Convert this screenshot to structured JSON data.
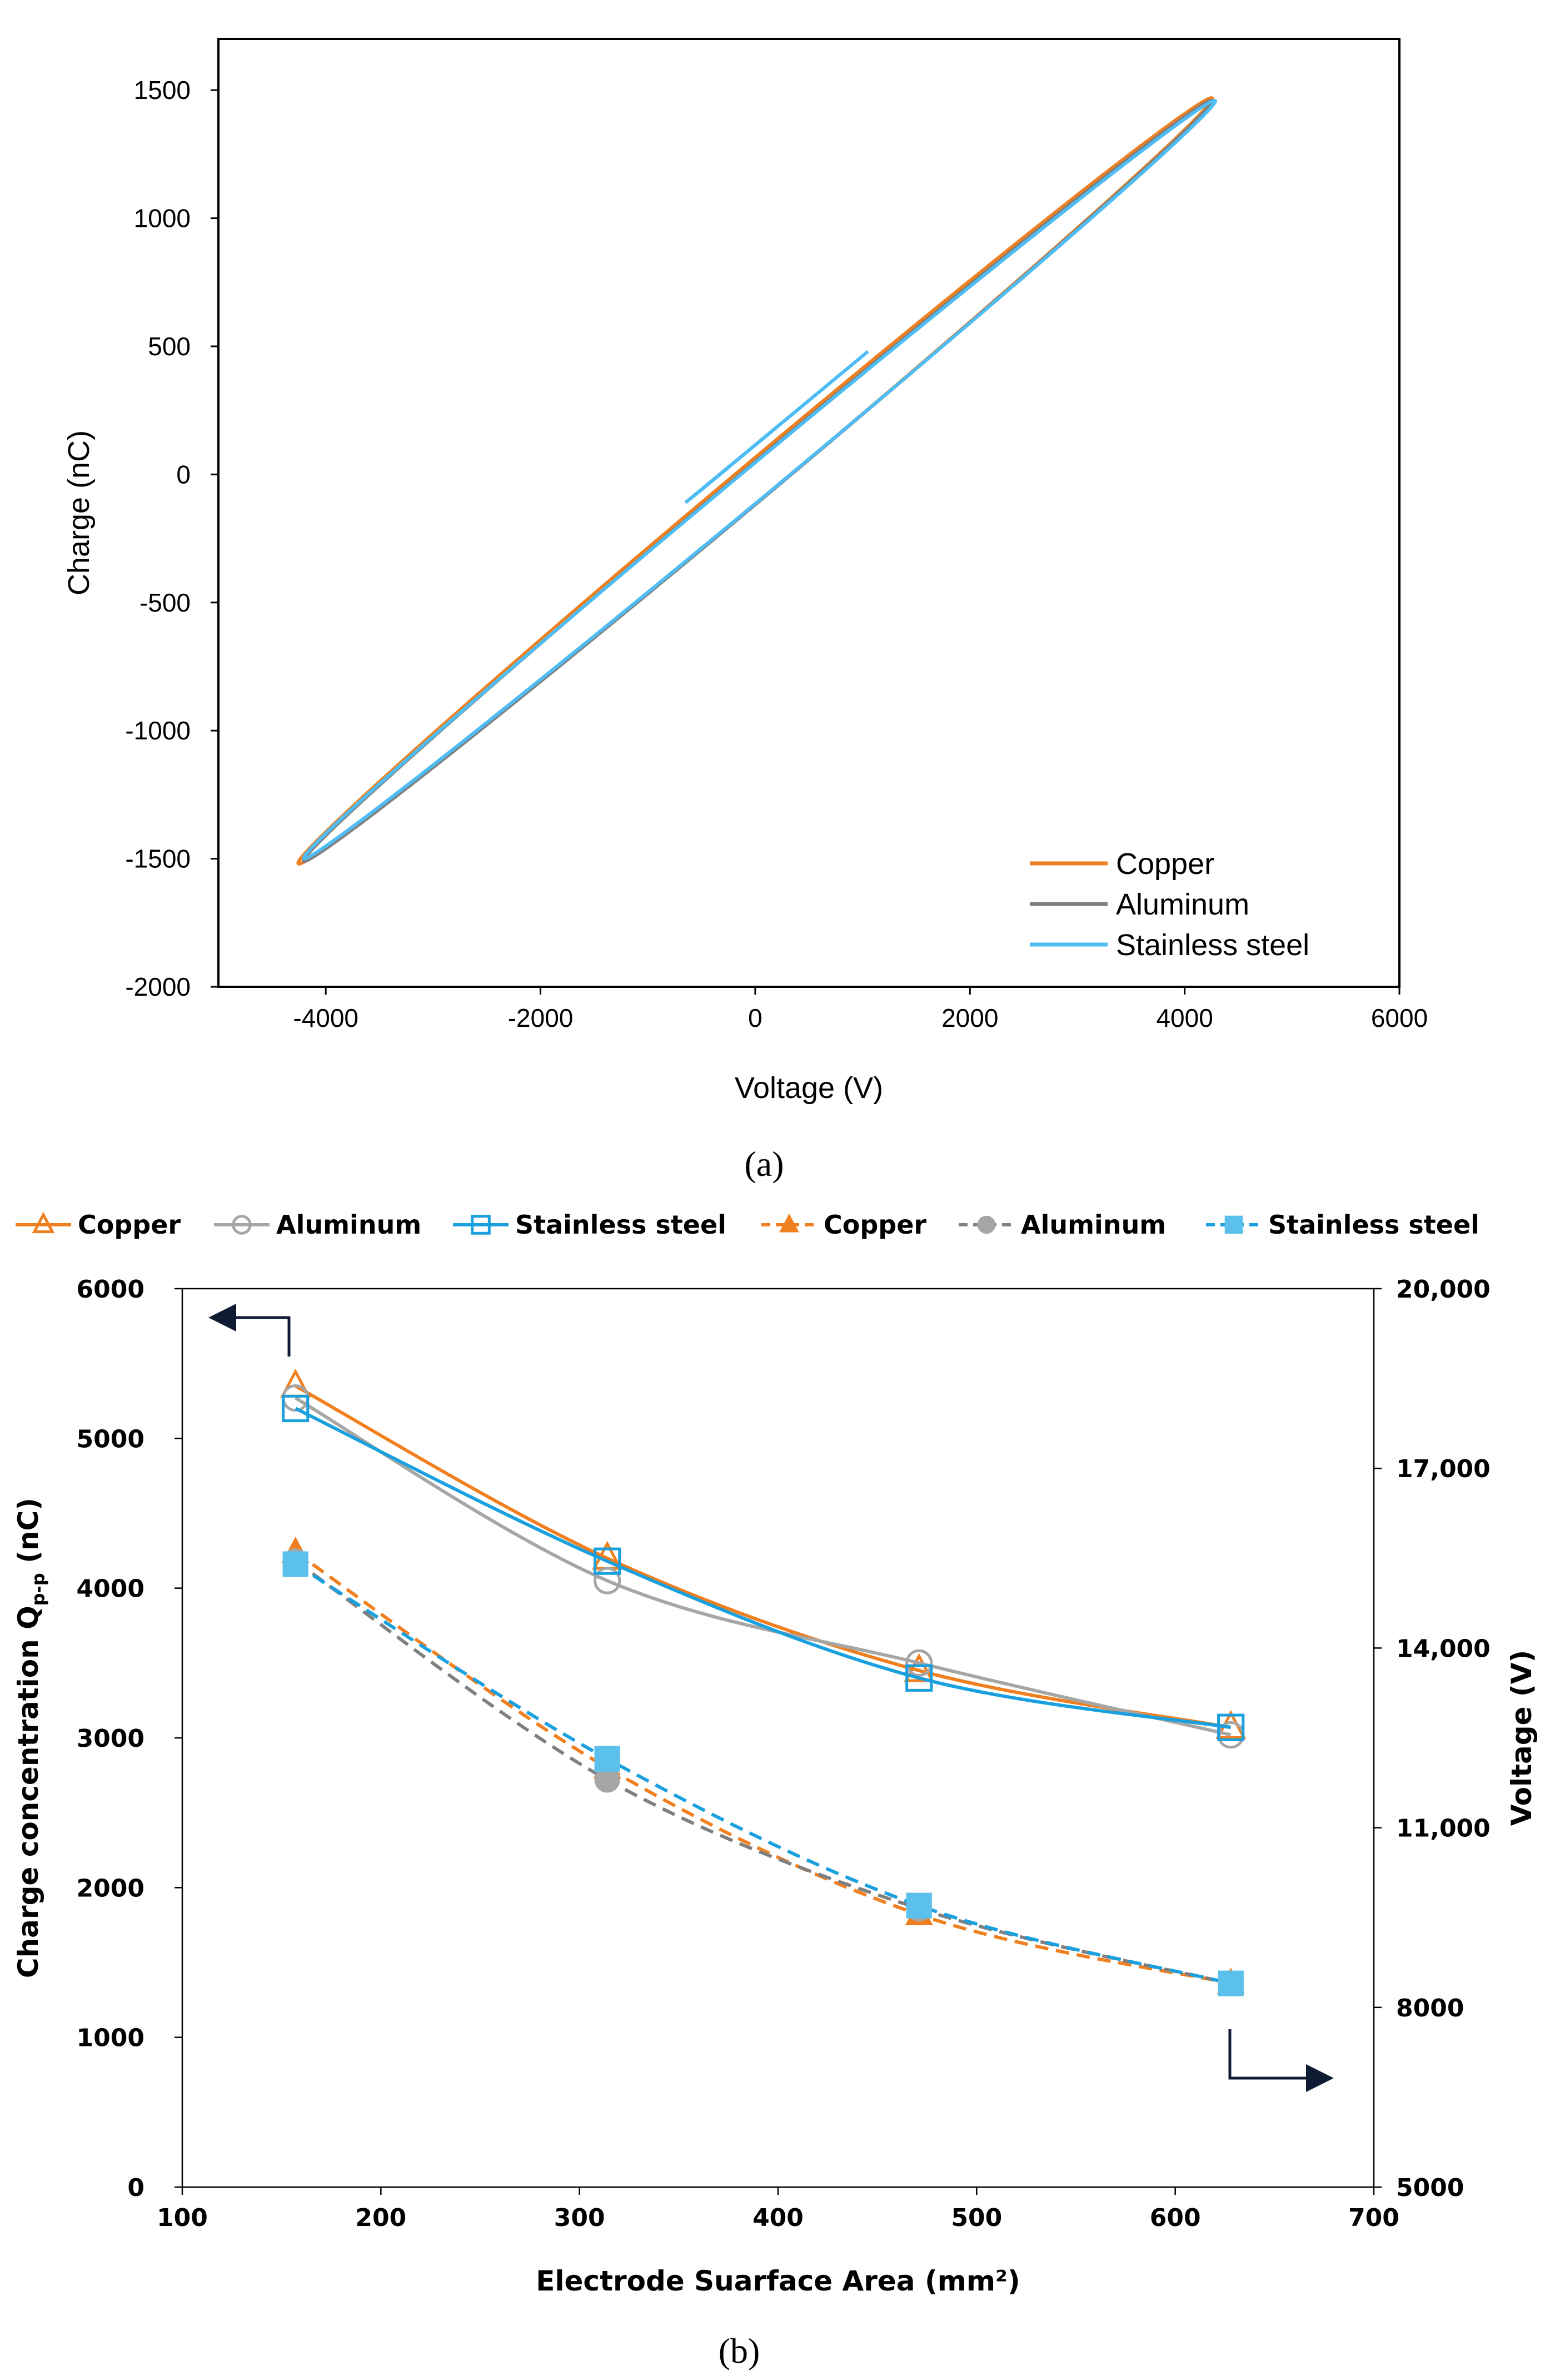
{
  "chart_data": [
    {
      "type": "line",
      "panel_caption": "(a)",
      "xlabel": "Voltage (V)",
      "ylabel": "Charge (nC)",
      "xlim": [
        -5000,
        6000
      ],
      "ylim": [
        -2000,
        1700
      ],
      "xticks": [
        "-4000",
        "-2000",
        "0",
        "2000",
        "4000",
        "6000"
      ],
      "yticks": [
        "1500",
        "1000",
        "500",
        "0",
        "-500",
        "-1000",
        "-1500",
        "-2000"
      ],
      "legend_position": "bottom-right",
      "series": [
        {
          "name": "Copper",
          "color": "#F07F1F",
          "shape": "hysteresis-loop",
          "v_peak": 4250,
          "q_peak": 1470,
          "v_min": -4250,
          "q_min": -1520,
          "loop_half_width_v": 260
        },
        {
          "name": "Aluminum",
          "color": "#7F7F7F",
          "shape": "hysteresis-loop",
          "v_peak": 4250,
          "q_peak": 1460,
          "v_min": -4200,
          "q_min": -1510,
          "loop_half_width_v": 240
        },
        {
          "name": "Stainless steel",
          "color": "#4EBDF4",
          "shape": "hysteresis-loop",
          "v_peak": 4280,
          "q_peak": 1460,
          "v_min": -4200,
          "q_min": -1500,
          "loop_half_width_v": 230
        }
      ]
    },
    {
      "type": "line",
      "panel_caption": "(b)",
      "xlabel": "Electrode Suarface Area (mm²)",
      "ylabel_main": "Charge concentration Q",
      "ylabel_sub": "p-p",
      "ylabel_unit": " (nC)",
      "y2label": "Voltage (V)",
      "xlim": [
        100,
        700
      ],
      "ylim": [
        0,
        6000
      ],
      "y2lim": [
        5000,
        20000
      ],
      "xticks": [
        "100",
        "200",
        "300",
        "400",
        "500",
        "600",
        "700"
      ],
      "yticks": [
        "0",
        "1000",
        "2000",
        "3000",
        "4000",
        "5000",
        "6000"
      ],
      "y2ticks": [
        "5000",
        "8000",
        "11,000",
        "14,000",
        "17,000",
        "20,000"
      ],
      "x": [
        157,
        314,
        471,
        628
      ],
      "legend_position": "top",
      "series": [
        {
          "name": "Copper",
          "axis": "left",
          "style": "solid",
          "marker": "triangle-open",
          "color": "#F07F1F",
          "values": [
            5350,
            4200,
            3450,
            3070
          ]
        },
        {
          "name": "Aluminum",
          "axis": "left",
          "style": "solid",
          "marker": "circle-open",
          "color": "#A6A6A6",
          "values": [
            5270,
            4050,
            3500,
            3020
          ]
        },
        {
          "name": "Stainless steel",
          "axis": "left",
          "style": "solid",
          "marker": "square-open",
          "color": "#1AA0DE",
          "values": [
            5200,
            4180,
            3400,
            3070
          ]
        },
        {
          "name": "Copper",
          "axis": "right",
          "style": "dashed",
          "marker": "triangle-filled",
          "color": "#F07F1F",
          "values": [
            15600,
            12000,
            9550,
            8400
          ]
        },
        {
          "name": "Aluminum",
          "axis": "right",
          "style": "dashed",
          "marker": "circle-filled",
          "color": "#7F7F7F",
          "values": [
            15450,
            11800,
            9650,
            8400
          ]
        },
        {
          "name": "Stainless steel",
          "axis": "right",
          "style": "dashed",
          "marker": "square-filled",
          "color": "#1AA0DE",
          "values": [
            15400,
            12150,
            9700,
            8400
          ]
        }
      ]
    }
  ]
}
